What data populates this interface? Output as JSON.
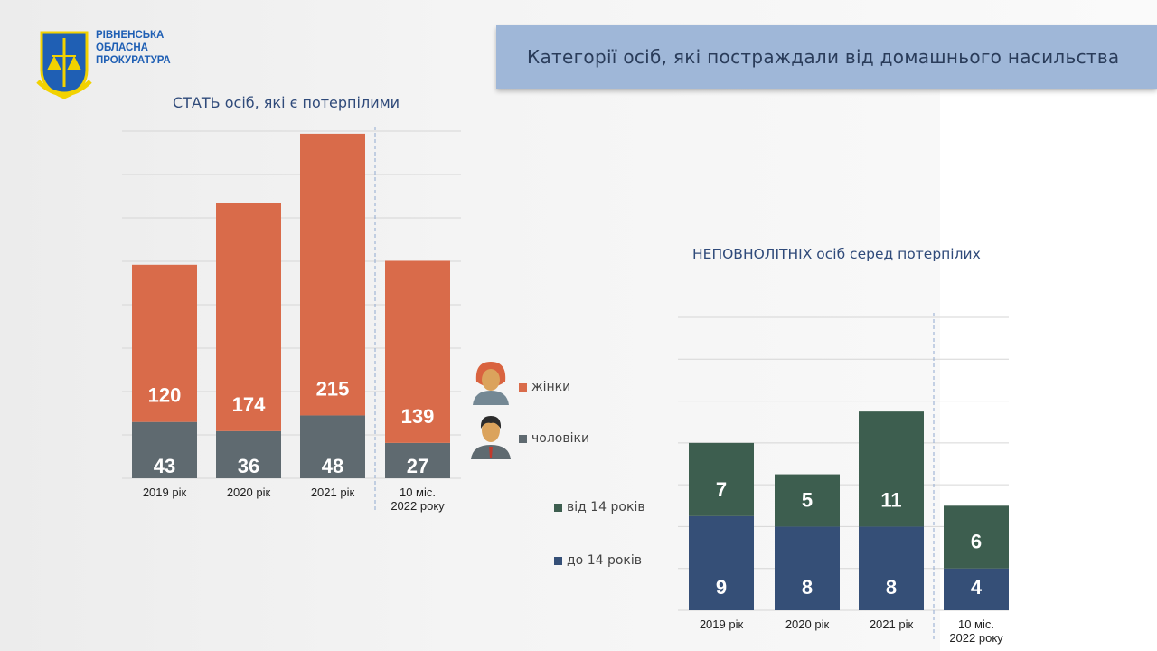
{
  "header": {
    "org_lines": [
      "РІВНЕНСЬКА",
      "ОБЛАСНА",
      "ПРОКУРАТУРА"
    ],
    "title": "Категорії осіб, які постраждали від домашнього насильства"
  },
  "chart_data": [
    {
      "type": "bar",
      "stacked": true,
      "title": "СТАТЬ осіб, які є потерпілими",
      "categories": [
        "2019 рік",
        "2020 рік",
        "2021 рік",
        "10 міс. 2022 року"
      ],
      "series": [
        {
          "name": "чоловіки",
          "color": "#5f6a70",
          "values": [
            43,
            36,
            48,
            27
          ]
        },
        {
          "name": "жінки",
          "color": "#d96b4a",
          "values": [
            120,
            174,
            215,
            139
          ]
        }
      ],
      "ylim": [
        0,
        265
      ],
      "grid": true,
      "legend": "right"
    },
    {
      "type": "bar",
      "stacked": true,
      "title": "НЕПОВНОЛІТНІХ осіб серед потерпілих",
      "categories": [
        "2019 рік",
        "2020 рік",
        "2021 рік",
        "10 міс. 2022 року"
      ],
      "series": [
        {
          "name": "до 14 років",
          "color": "#354f77",
          "values": [
            9,
            8,
            8,
            4
          ]
        },
        {
          "name": "від 14 років",
          "color": "#3d5e4f",
          "values": [
            7,
            5,
            11,
            6
          ]
        }
      ],
      "ylim": [
        0,
        28
      ],
      "grid": true,
      "legend": "left"
    }
  ]
}
